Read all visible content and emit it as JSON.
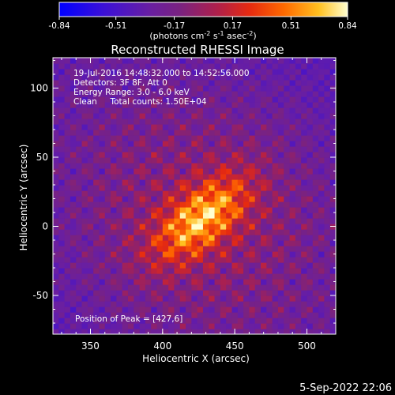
{
  "chart_data": {
    "type": "heatmap",
    "title": "Reconstructed RHESSI Image",
    "xlabel": "Heliocentric X (arcsec)",
    "ylabel": "Heliocentric Y (arcsec)",
    "xlim": [
      324,
      520
    ],
    "ylim": [
      -78,
      122
    ],
    "x_ticks": [
      350,
      400,
      450,
      500
    ],
    "y_ticks": [
      100,
      50,
      0,
      -50
    ],
    "colorbar": {
      "ticks": [
        "-0.84",
        "-0.51",
        "-0.17",
        "0.17",
        "0.51",
        "0.84"
      ],
      "range": [
        -0.84,
        0.84
      ],
      "units_prefix": "(photons cm",
      "units_exp1": "-2",
      "units_mid": " s",
      "units_exp2": "-1",
      "units_mid2": " asec",
      "units_exp3": "-2",
      "units_suffix": ")"
    },
    "annotations": {
      "time_range": "19-Jul-2016 14:48:32.000 to 14:52:56.000",
      "detectors": "Detectors: 3F 8F, Att 0",
      "energy_range": "Energy Range: 3.0 - 6.0 keV",
      "clean": "Clean     Total counts: 1.50E+04",
      "peak": "Position of Peak = [427,6]"
    },
    "peak_position": [
      427,
      6
    ],
    "pixel_size_arcsec": 4,
    "colors": {
      "background": "#000000",
      "foreground": "#ffffff"
    }
  },
  "footer": {
    "timestamp": "5-Sep-2022 22:06"
  }
}
